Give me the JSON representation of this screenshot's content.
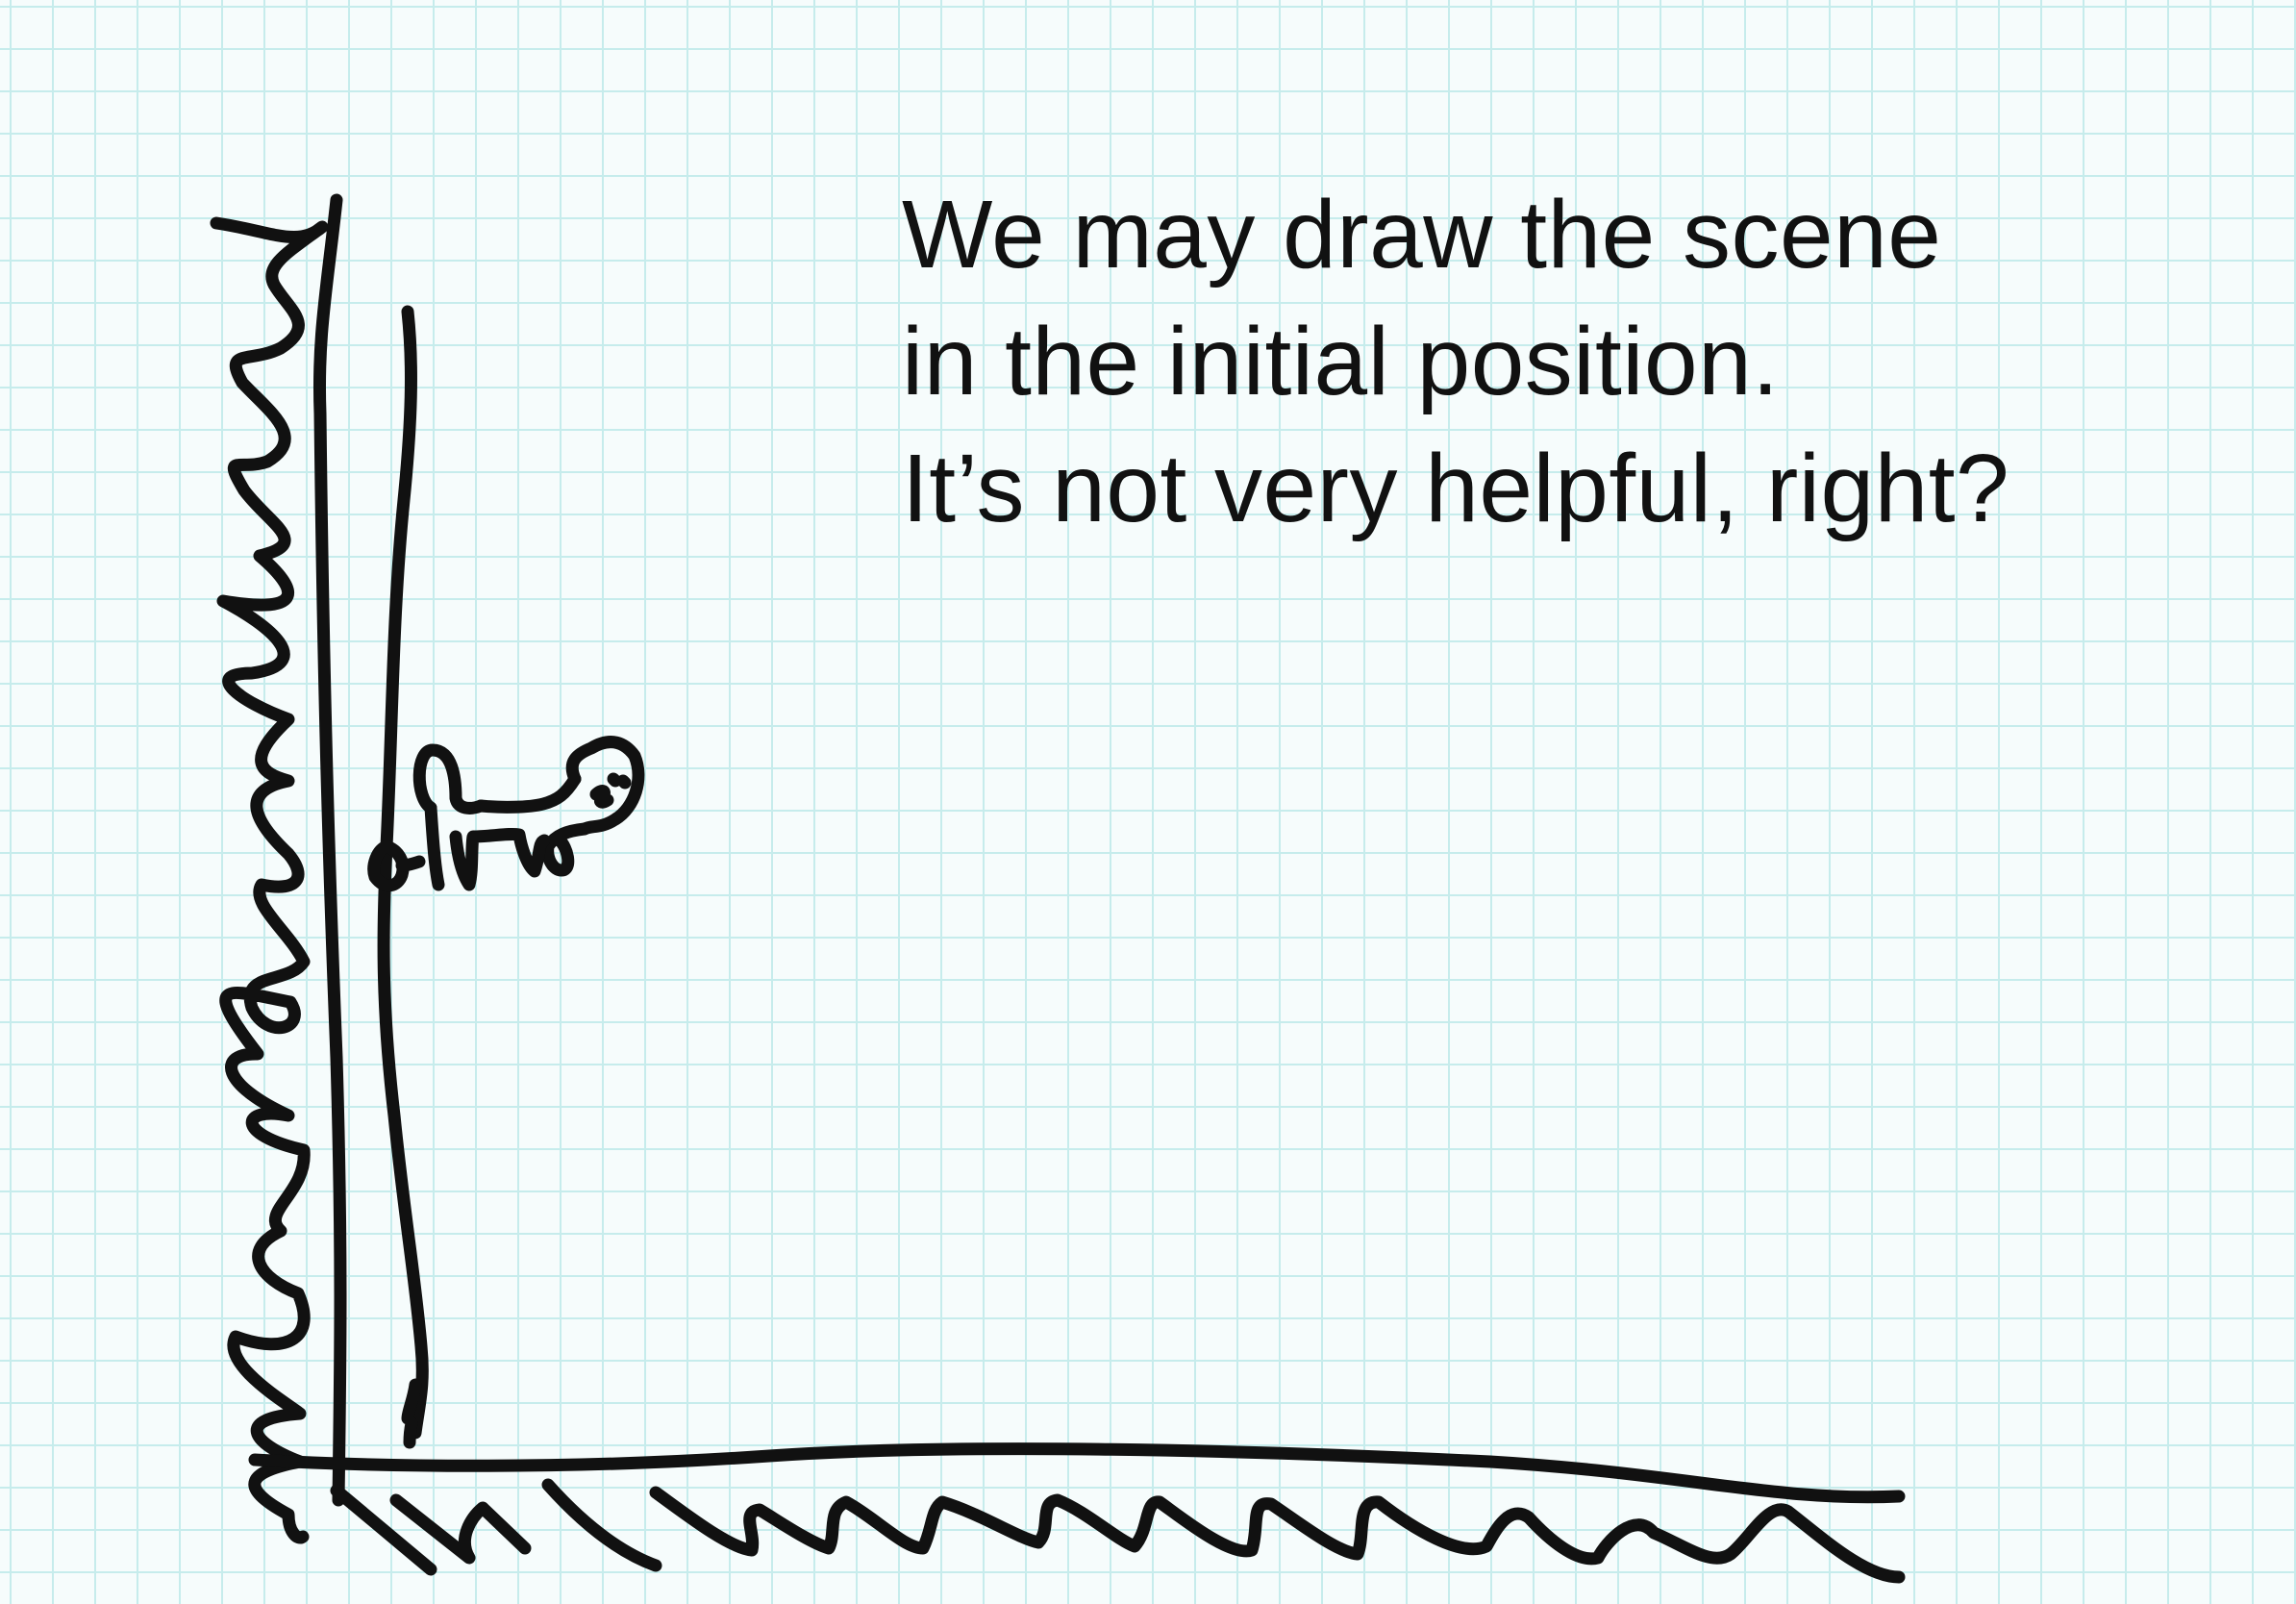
{
  "caption": {
    "line1": "We may draw the scene",
    "line2": "in the initial position.",
    "line3": "It’s not very helpful, right?"
  },
  "colors": {
    "paper": "#f6fcfc",
    "grid": "#c6ecec",
    "ink": "#111111"
  },
  "icons": {
    "creature": "creature-on-rope-icon"
  }
}
